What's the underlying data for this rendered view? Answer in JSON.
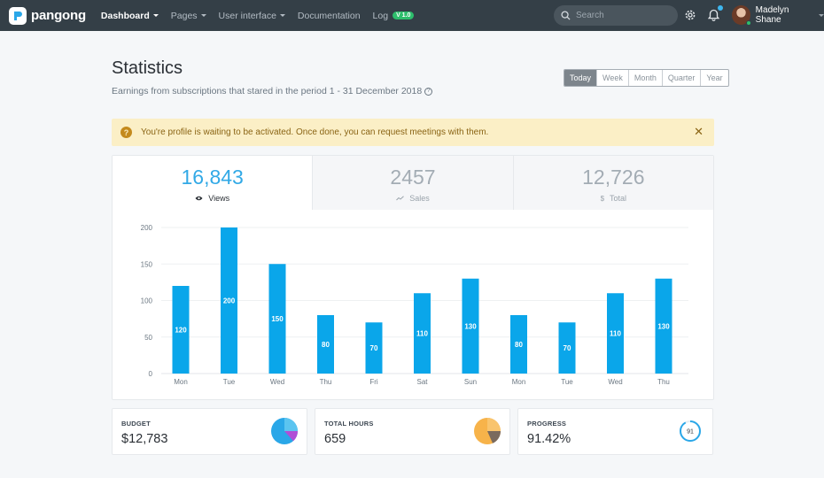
{
  "brand": {
    "name": "pangong"
  },
  "nav": [
    {
      "label": "Dashboard",
      "active": true,
      "dropdown": true
    },
    {
      "label": "Pages",
      "active": false,
      "dropdown": true
    },
    {
      "label": "User interface",
      "active": false,
      "dropdown": true
    },
    {
      "label": "Documentation",
      "active": false,
      "dropdown": false
    },
    {
      "label": "Log",
      "active": false,
      "dropdown": false,
      "badge": "V 1.0"
    }
  ],
  "search": {
    "placeholder": "Search"
  },
  "user": {
    "name": "Madelyn Shane"
  },
  "page": {
    "title": "Statistics",
    "subtitle": "Earnings from subscriptions that stared in the period 1 - 31 December 2018"
  },
  "period_buttons": [
    {
      "label": "Today",
      "active": true
    },
    {
      "label": "Week",
      "active": false
    },
    {
      "label": "Month",
      "active": false
    },
    {
      "label": "Quarter",
      "active": false
    },
    {
      "label": "Year",
      "active": false
    }
  ],
  "alert": {
    "text": "You're profile is waiting to be activated. Once done, you can request meetings with them."
  },
  "stats": [
    {
      "value": "16,843",
      "label": "Views",
      "icon": "eye-icon",
      "active": true
    },
    {
      "value": "2457",
      "label": "Sales",
      "icon": "trend-up-icon",
      "active": false
    },
    {
      "value": "12,726",
      "label": "Total",
      "icon": "dollar-icon",
      "active": false
    }
  ],
  "chart_data": {
    "type": "bar",
    "categories": [
      "Mon",
      "Tue",
      "Wed",
      "Thu",
      "Fri",
      "Sat",
      "Sun",
      "Mon",
      "Tue",
      "Wed",
      "Thu"
    ],
    "values": [
      120,
      200,
      150,
      80,
      70,
      110,
      130,
      80,
      70,
      110,
      130
    ],
    "yticks": [
      0,
      50,
      100,
      150,
      200
    ],
    "ylim": [
      0,
      200
    ],
    "grid": true,
    "data_labels": true,
    "bar_color": "#0aa6ea"
  },
  "mini_cards": [
    {
      "label": "BUDGET",
      "value": "$12,783",
      "visual": "pie",
      "colors": [
        "#2aa7e8",
        "#b04fd6",
        "#5bc4f0"
      ]
    },
    {
      "label": "TOTAL HOURS",
      "value": "659",
      "visual": "pie",
      "colors": [
        "#f7b34a",
        "#7a6a5e",
        "#f9c46d"
      ]
    },
    {
      "label": "PROGRESS",
      "value": "91.42%",
      "visual": "ring",
      "ring_value": "91",
      "ring_fraction": 0.9142,
      "colors": [
        "#2aa7e8"
      ]
    }
  ],
  "colors": {
    "accent": "#32a9e6",
    "topbar": "#343f47",
    "alert_bg": "#fbefc6",
    "success": "#2dbe6c"
  }
}
